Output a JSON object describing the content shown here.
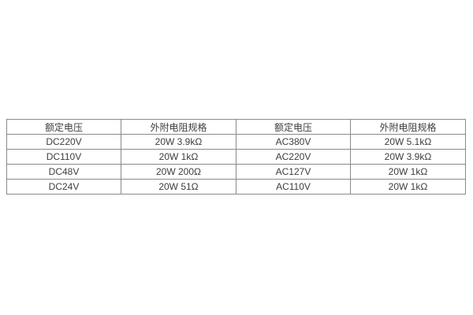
{
  "table": {
    "border_color": "#8a8a8a",
    "text_color": "#3d3d3d",
    "background": "#ffffff",
    "columns": [
      "额定电压",
      "外附电阻规格",
      "额定电压",
      "外附电阻规格"
    ],
    "rows": [
      [
        "DC220V",
        "20W 3.9kΩ",
        "AC380V",
        "20W 5.1kΩ"
      ],
      [
        "DC110V",
        "20W 1kΩ",
        "AC220V",
        "20W 3.9kΩ"
      ],
      [
        "DC48V",
        "20W 200Ω",
        "AC127V",
        "20W 1kΩ"
      ],
      [
        "DC24V",
        "20W 51Ω",
        "AC110V",
        "20W 1kΩ"
      ]
    ]
  }
}
